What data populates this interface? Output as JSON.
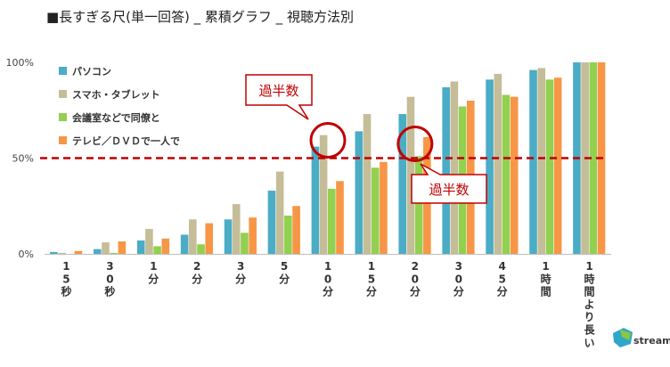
{
  "title": "■長すぎる尺(単一回答) _ 累積グラフ _ 視聴方法別",
  "chart_data": {
    "type": "bar",
    "categories": [
      "1\n5\n秒",
      "3\n0\n秒",
      "1\n分",
      "2\n分",
      "3\n分",
      "5\n分",
      "1\n0\n分",
      "1\n5\n分",
      "2\n0\n分",
      "3\n0\n分",
      "4\n5\n分",
      "1\n時\n間",
      "1\n時\n間\nよ\nり\n長\nい"
    ],
    "series": [
      {
        "name": "パソコン",
        "color": "#4BACC6",
        "values": [
          1,
          2.5,
          7,
          10,
          18,
          33,
          56,
          64,
          73,
          87,
          91,
          96,
          100
        ]
      },
      {
        "name": "スマホ・タブレット",
        "color": "#C4BD97",
        "values": [
          0.5,
          6,
          13,
          18,
          26,
          43,
          62,
          73,
          82,
          90,
          94,
          97,
          100
        ]
      },
      {
        "name": "会議室などで同僚と",
        "color": "#92D050",
        "values": [
          0,
          0.5,
          4,
          5,
          11,
          20,
          34,
          45,
          51,
          77,
          83,
          91,
          100
        ]
      },
      {
        "name": "テレビ／ＤＶＤで一人で",
        "color": "#F79646",
        "values": [
          1.5,
          6.5,
          8,
          16,
          19,
          25,
          38,
          48,
          61,
          80,
          82,
          92,
          100
        ]
      }
    ],
    "yticks": [
      "0%",
      "50%",
      "100%"
    ],
    "ylim": [
      0,
      100
    ],
    "reference_line": {
      "value": 50,
      "color": "#C00000"
    },
    "annotations": [
      {
        "text": "過半数",
        "category_index": 6
      },
      {
        "text": "過半数",
        "category_index": 8
      }
    ],
    "legend_position": "top-left"
  },
  "logo": {
    "text": "Ustream"
  }
}
